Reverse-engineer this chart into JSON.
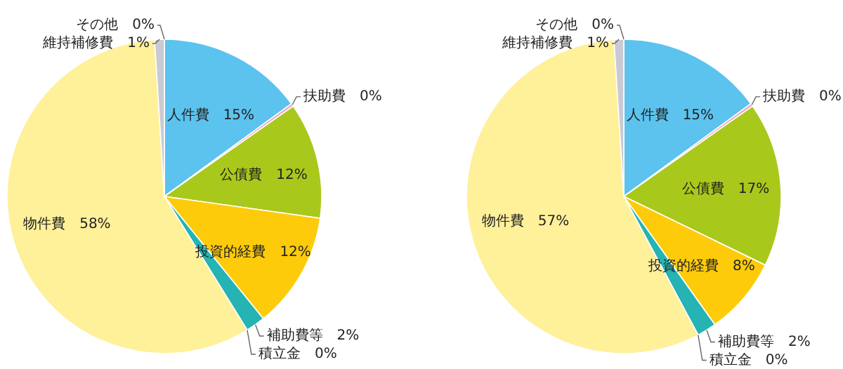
{
  "chart_data": [
    {
      "type": "pie",
      "categories": [
        "人件費",
        "扶助費",
        "公債費",
        "投資的経費",
        "補助費等",
        "積立金",
        "物件費",
        "維持補修費",
        "その他"
      ],
      "values": [
        15,
        0.3,
        12,
        12,
        2,
        0,
        58,
        1,
        0
      ],
      "value_labels": [
        "15%",
        "0%",
        "12%",
        "12%",
        "2%",
        "0%",
        "58%",
        "1%",
        "0%"
      ],
      "colors": [
        "#5bc3ee",
        "#f3a0bd",
        "#a9c81c",
        "#fdcb0a",
        "#25b3b3",
        "#1f7fa3",
        "#fff09a",
        "#c9cad3",
        "#ffffff"
      ],
      "legend": false
    },
    {
      "type": "pie",
      "categories": [
        "人件費",
        "扶助費",
        "公債費",
        "投資的経費",
        "補助費等",
        "積立金",
        "物件費",
        "維持補修費",
        "その他"
      ],
      "values": [
        15,
        0.3,
        17,
        8,
        2,
        0,
        57,
        1,
        0
      ],
      "value_labels": [
        "15%",
        "0%",
        "17%",
        "8%",
        "2%",
        "0%",
        "57%",
        "1%",
        "0%"
      ],
      "colors": [
        "#5bc3ee",
        "#f3a0bd",
        "#a9c81c",
        "#fdcb0a",
        "#25b3b3",
        "#1f7fa3",
        "#fff09a",
        "#c9cad3",
        "#ffffff"
      ],
      "legend": false
    }
  ]
}
